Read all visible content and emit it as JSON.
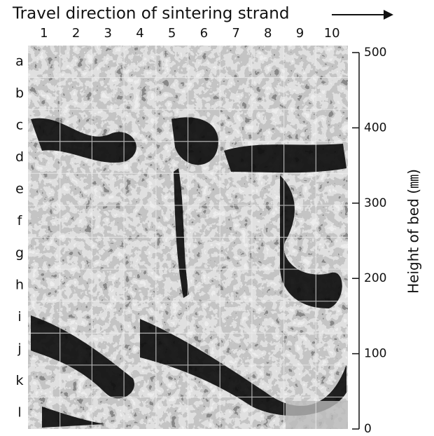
{
  "title": "Travel direction of sintering strand",
  "columns": [
    "1",
    "2",
    "3",
    "4",
    "5",
    "6",
    "7",
    "8",
    "9",
    "10"
  ],
  "rows": [
    "a",
    "b",
    "c",
    "d",
    "e",
    "f",
    "g",
    "h",
    "i",
    "j",
    "k",
    "l"
  ],
  "scale": {
    "label": "Height of bed (㎜)",
    "lim": [
      0,
      500
    ],
    "ticks": [
      0,
      100,
      200,
      300,
      400,
      500
    ]
  }
}
